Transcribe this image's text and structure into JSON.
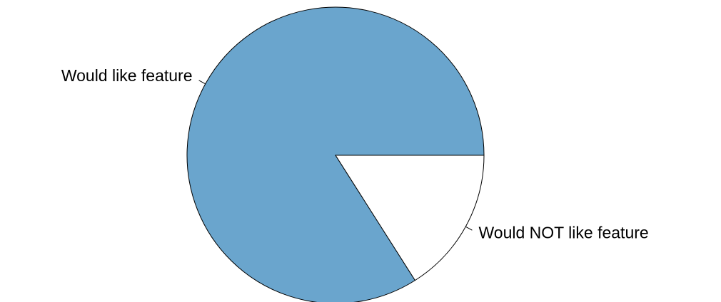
{
  "chart_data": {
    "type": "pie",
    "categories": [
      "Would like feature",
      "Would NOT like feature"
    ],
    "values": [
      84,
      16
    ],
    "colors": [
      "#6aa5cd",
      "#ffffff"
    ]
  }
}
